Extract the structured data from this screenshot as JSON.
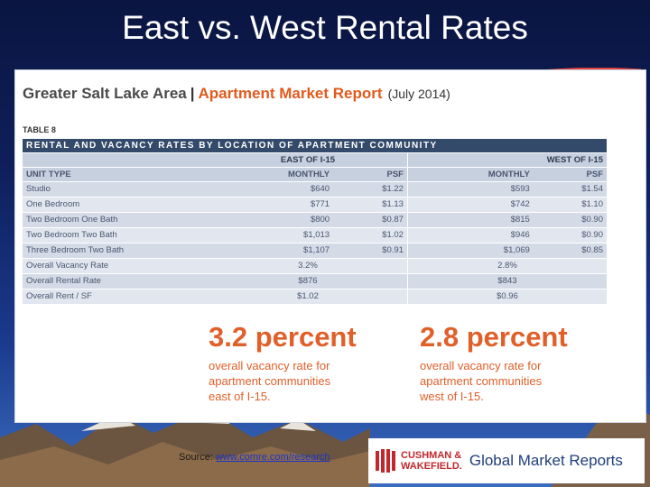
{
  "slide": {
    "title": "East vs. West Rental Rates"
  },
  "report": {
    "region": "Greater Salt Lake Area",
    "separator": "|",
    "name": "Apartment Market Report",
    "date": "(July 2014)",
    "table_label": "TABLE 8",
    "banner": "RENTAL AND VACANCY RATES BY LOCATION OF APARTMENT COMMUNITY",
    "groups": {
      "east": "EAST OF I-15",
      "west": "WEST OF I-15"
    },
    "columns": {
      "unit_type": "UNIT TYPE",
      "monthly": "MONTHLY",
      "psf": "PSF"
    },
    "rows": [
      {
        "label": "Studio",
        "east_monthly": "$640",
        "east_psf": "$1.22",
        "west_monthly": "$593",
        "west_psf": "$1.54"
      },
      {
        "label": "One Bedroom",
        "east_monthly": "$771",
        "east_psf": "$1.13",
        "west_monthly": "$742",
        "west_psf": "$1.10"
      },
      {
        "label": "Two Bedroom One Bath",
        "east_monthly": "$800",
        "east_psf": "$0.87",
        "west_monthly": "$815",
        "west_psf": "$0.90"
      },
      {
        "label": "Two Bedroom Two Bath",
        "east_monthly": "$1,013",
        "east_psf": "$1.02",
        "west_monthly": "$946",
        "west_psf": "$0.90"
      },
      {
        "label": "Three Bedroom Two Bath",
        "east_monthly": "$1,107",
        "east_psf": "$0.91",
        "west_monthly": "$1,069",
        "west_psf": "$0.85"
      }
    ],
    "summary": [
      {
        "label": "Overall Vacancy Rate",
        "east": "3.2%",
        "west": "2.8%"
      },
      {
        "label": "Overall Rental Rate",
        "east": "$876",
        "west": "$843"
      },
      {
        "label": "Overall Rent / SF",
        "east": "$1.02",
        "west": "$0.96"
      }
    ],
    "stats": {
      "east": {
        "headline": "3.2 percent",
        "caption": [
          "overall vacancy rate for",
          "apartment communities",
          "east of I-15."
        ]
      },
      "west": {
        "headline": "2.8 percent",
        "caption": [
          "overall vacancy rate for",
          "apartment communities",
          "west of I-15."
        ]
      }
    }
  },
  "footer": {
    "source_prefix": "Source: ",
    "source_link": "www.comre.com/research",
    "brand_line1": "CUSHMAN &",
    "brand_line2": "WAKEFIELD.",
    "brand_tagline": "Global Market Reports",
    "logo_icon": "cushman-wakefield-logo-icon"
  },
  "colors": {
    "accent": "#e05a1e",
    "table_header": "#344a6b",
    "brand_red": "#c1272d",
    "brand_blue": "#1f3e7a"
  }
}
